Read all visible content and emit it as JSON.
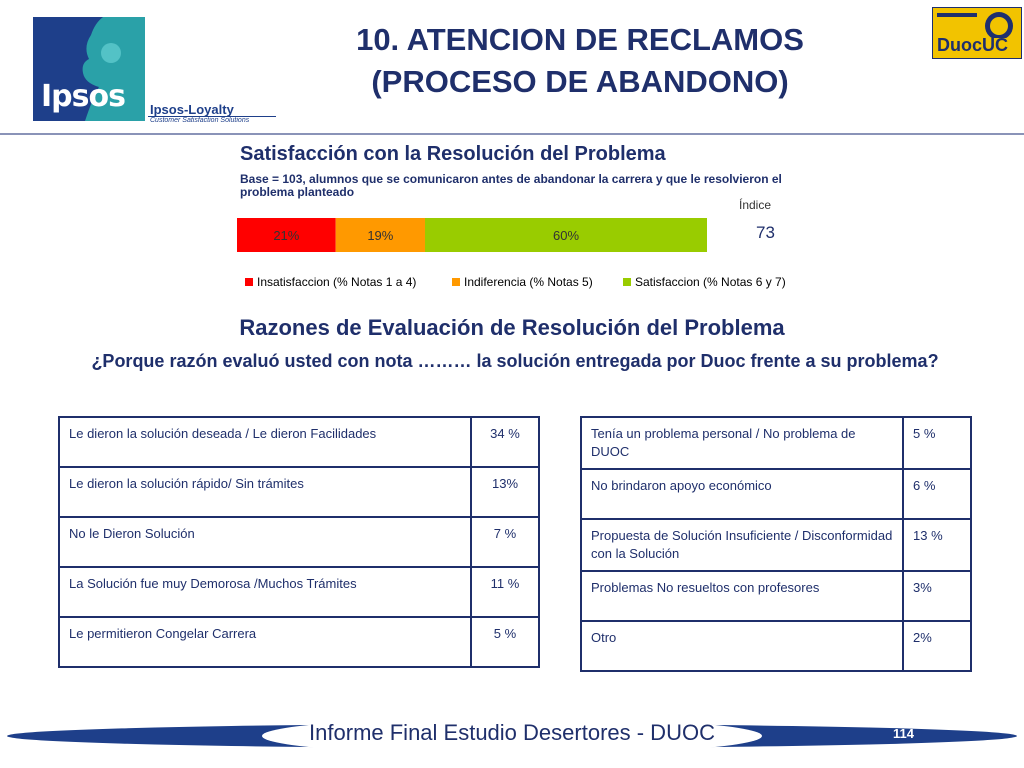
{
  "header": {
    "title_line1": "10. ATENCION DE RECLAMOS",
    "title_line2": "(PROCESO DE ABANDONO)",
    "ipsos_logo_text": "Ipsos",
    "loyalty_text": "Ipsos-Loyalty",
    "loyalty_sub": "Customer Satisfaction Solutions",
    "duoc_logo_text": "DuocUC"
  },
  "chart_data": {
    "type": "bar",
    "title": "Satisfacción con la Resolución del Problema",
    "subtitle": "Base = 103, alumnos que se comunicaron antes de abandonar la carrera y que le resolvieron el problema planteado",
    "stacked": true,
    "orientation": "horizontal",
    "series": [
      {
        "name": "Insatisfaccion (% Notas 1 a 4)",
        "values": [
          21
        ],
        "label": "21%",
        "color": "#ff0000"
      },
      {
        "name": "Indiferencia (% Notas 5)",
        "values": [
          19
        ],
        "label": "19%",
        "color": "#ff9900"
      },
      {
        "name": "Satisfaccion (% Notas 6 y 7)",
        "values": [
          60
        ],
        "label": "60%",
        "color": "#99cc00"
      }
    ],
    "legend": "bottom",
    "indice_label": "Índice",
    "indice_value": "73"
  },
  "reasons": {
    "title": "Razones de Evaluación de Resolución del Problema",
    "question": "¿Porque razón evaluó usted con nota ……… la solución entregada por Duoc frente a su problema?",
    "left_rows": [
      {
        "reason": "Le dieron la solución deseada / Le dieron Facilidades",
        "pct": "34 %"
      },
      {
        "reason": "Le dieron la solución rápido/ Sin trámites",
        "pct": "13%"
      },
      {
        "reason": "No le Dieron Solución",
        "pct": "7 %"
      },
      {
        "reason": "La Solución fue muy Demorosa /Muchos Trámites",
        "pct": "11 %"
      },
      {
        "reason": "Le permitieron Congelar Carrera",
        "pct": "5 %"
      }
    ],
    "right_rows": [
      {
        "reason": "Tenía un problema personal / No problema de DUOC",
        "pct": "5 %"
      },
      {
        "reason": "No brindaron apoyo económico",
        "pct": "6 %"
      },
      {
        "reason": "Propuesta de Solución Insuficiente / Disconformidad con la Solución",
        "pct": "13 %"
      },
      {
        "reason": "Problemas No resueltos con profesores",
        "pct": "3%"
      },
      {
        "reason": "Otro",
        "pct": "2%"
      }
    ]
  },
  "footer": {
    "text": "Informe Final Estudio Desertores - DUOC",
    "page_number": "114"
  },
  "colors": {
    "title_blue": "#1f2f6b",
    "ipsos_blue": "#1e3f8a",
    "ipsos_teal": "#2aa1a8"
  }
}
